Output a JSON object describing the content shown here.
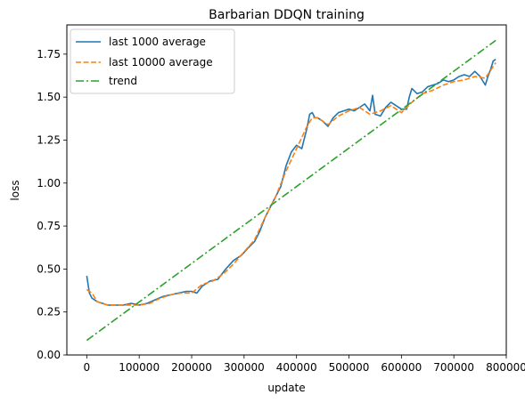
{
  "chart_data": {
    "type": "line",
    "title": "Barbarian DDQN training",
    "xlabel": "update",
    "ylabel": "loss",
    "xlim": [
      -38000,
      800000
    ],
    "ylim": [
      0,
      1.92
    ],
    "xticks": [
      0,
      100000,
      200000,
      300000,
      400000,
      500000,
      600000,
      700000,
      800000
    ],
    "yticks": [
      0.0,
      0.25,
      0.5,
      0.75,
      1.0,
      1.25,
      1.5,
      1.75
    ],
    "ytick_labels": [
      "0.00",
      "0.25",
      "0.50",
      "0.75",
      "1.00",
      "1.25",
      "1.50",
      "1.75"
    ],
    "grid": false,
    "legend": "upper-left",
    "series": [
      {
        "name": "last 1000 average",
        "color": "#1f77b4",
        "style": "solid",
        "x": [
          0,
          5000,
          10000,
          20000,
          30000,
          40000,
          55000,
          70000,
          85000,
          100000,
          115000,
          130000,
          145000,
          160000,
          175000,
          190000,
          200000,
          210000,
          220000,
          235000,
          250000,
          265000,
          280000,
          295000,
          310000,
          320000,
          330000,
          340000,
          350000,
          360000,
          370000,
          380000,
          390000,
          400000,
          410000,
          420000,
          425000,
          430000,
          435000,
          440000,
          450000,
          460000,
          470000,
          480000,
          490000,
          500000,
          510000,
          520000,
          530000,
          540000,
          545000,
          550000,
          560000,
          570000,
          580000,
          590000,
          600000,
          610000,
          615000,
          620000,
          630000,
          640000,
          650000,
          660000,
          670000,
          680000,
          690000,
          700000,
          710000,
          720000,
          730000,
          740000,
          750000,
          760000,
          765000,
          770000,
          775000,
          780000
        ],
        "y": [
          0.46,
          0.36,
          0.33,
          0.31,
          0.3,
          0.29,
          0.29,
          0.29,
          0.3,
          0.29,
          0.3,
          0.32,
          0.34,
          0.35,
          0.36,
          0.37,
          0.37,
          0.36,
          0.4,
          0.43,
          0.44,
          0.5,
          0.55,
          0.58,
          0.63,
          0.66,
          0.72,
          0.8,
          0.86,
          0.92,
          0.98,
          1.1,
          1.18,
          1.22,
          1.2,
          1.32,
          1.4,
          1.41,
          1.38,
          1.38,
          1.36,
          1.33,
          1.38,
          1.41,
          1.42,
          1.43,
          1.42,
          1.44,
          1.46,
          1.42,
          1.51,
          1.4,
          1.39,
          1.44,
          1.47,
          1.45,
          1.43,
          1.43,
          1.5,
          1.55,
          1.52,
          1.53,
          1.56,
          1.57,
          1.58,
          1.6,
          1.59,
          1.6,
          1.62,
          1.63,
          1.62,
          1.65,
          1.62,
          1.57,
          1.62,
          1.66,
          1.71,
          1.72
        ]
      },
      {
        "name": "last 10000 average",
        "color": "#ff7f0e",
        "style": "dashed",
        "x": [
          0,
          10000,
          20000,
          40000,
          60000,
          80000,
          100000,
          120000,
          140000,
          160000,
          180000,
          200000,
          220000,
          240000,
          260000,
          280000,
          300000,
          320000,
          340000,
          360000,
          380000,
          400000,
          420000,
          430000,
          440000,
          460000,
          480000,
          500000,
          520000,
          540000,
          560000,
          580000,
          600000,
          620000,
          640000,
          660000,
          680000,
          700000,
          720000,
          740000,
          760000,
          780000
        ],
        "y": [
          0.38,
          0.36,
          0.31,
          0.29,
          0.29,
          0.29,
          0.29,
          0.3,
          0.33,
          0.35,
          0.36,
          0.36,
          0.41,
          0.43,
          0.47,
          0.53,
          0.6,
          0.67,
          0.8,
          0.92,
          1.07,
          1.2,
          1.33,
          1.38,
          1.38,
          1.34,
          1.39,
          1.42,
          1.44,
          1.4,
          1.42,
          1.45,
          1.41,
          1.47,
          1.52,
          1.54,
          1.57,
          1.59,
          1.6,
          1.62,
          1.61,
          1.7
        ]
      },
      {
        "name": "trend",
        "color": "#2ca02c",
        "style": "dashdot",
        "x": [
          0,
          780000
        ],
        "y": [
          0.085,
          1.83
        ]
      }
    ]
  }
}
